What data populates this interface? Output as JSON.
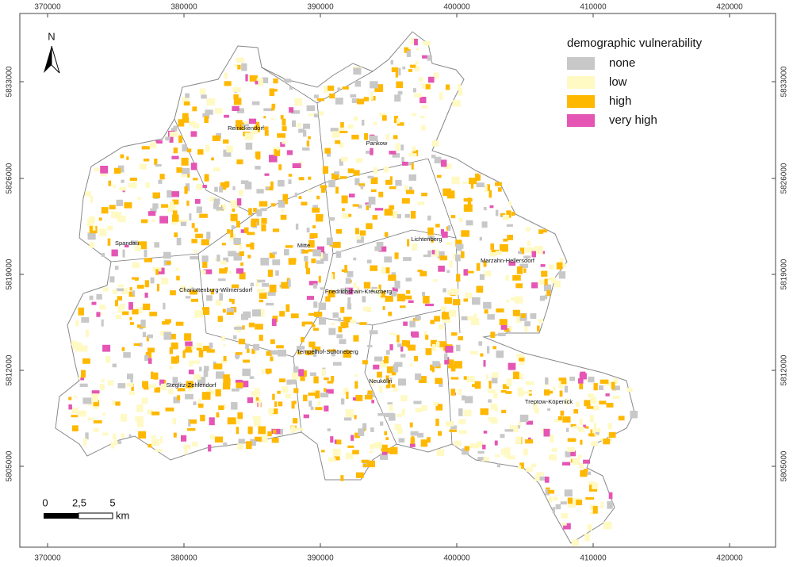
{
  "map": {
    "north_label": "N",
    "grid": {
      "eastings": [
        "370000",
        "380000",
        "390000",
        "400000",
        "410000",
        "420000"
      ],
      "northings": [
        "5833000",
        "5826000",
        "5819000",
        "5812000",
        "5805000"
      ]
    },
    "legend": {
      "title": "demographic vulnerability",
      "items": [
        {
          "label": "none",
          "color": "#c8c8c8"
        },
        {
          "label": "low",
          "color": "#fff9c4"
        },
        {
          "label": "high",
          "color": "#ffb800"
        },
        {
          "label": "very high",
          "color": "#e455b4"
        }
      ]
    },
    "districts": [
      "Reinickendorf",
      "Pankow",
      "Spandau",
      "Mitte",
      "Lichtenberg",
      "Marzahn-Hellersdorf",
      "Charlottenburg-Wilmersdorf",
      "Friedrichshain-Kreuzberg",
      "Tempelhof-Schöneberg",
      "Neukölln",
      "Steglitz-Zehlendorf",
      "Treptow-Köpenick"
    ],
    "scale_bar": {
      "labels": [
        "0",
        "2,5",
        "5"
      ],
      "unit": "km"
    }
  }
}
